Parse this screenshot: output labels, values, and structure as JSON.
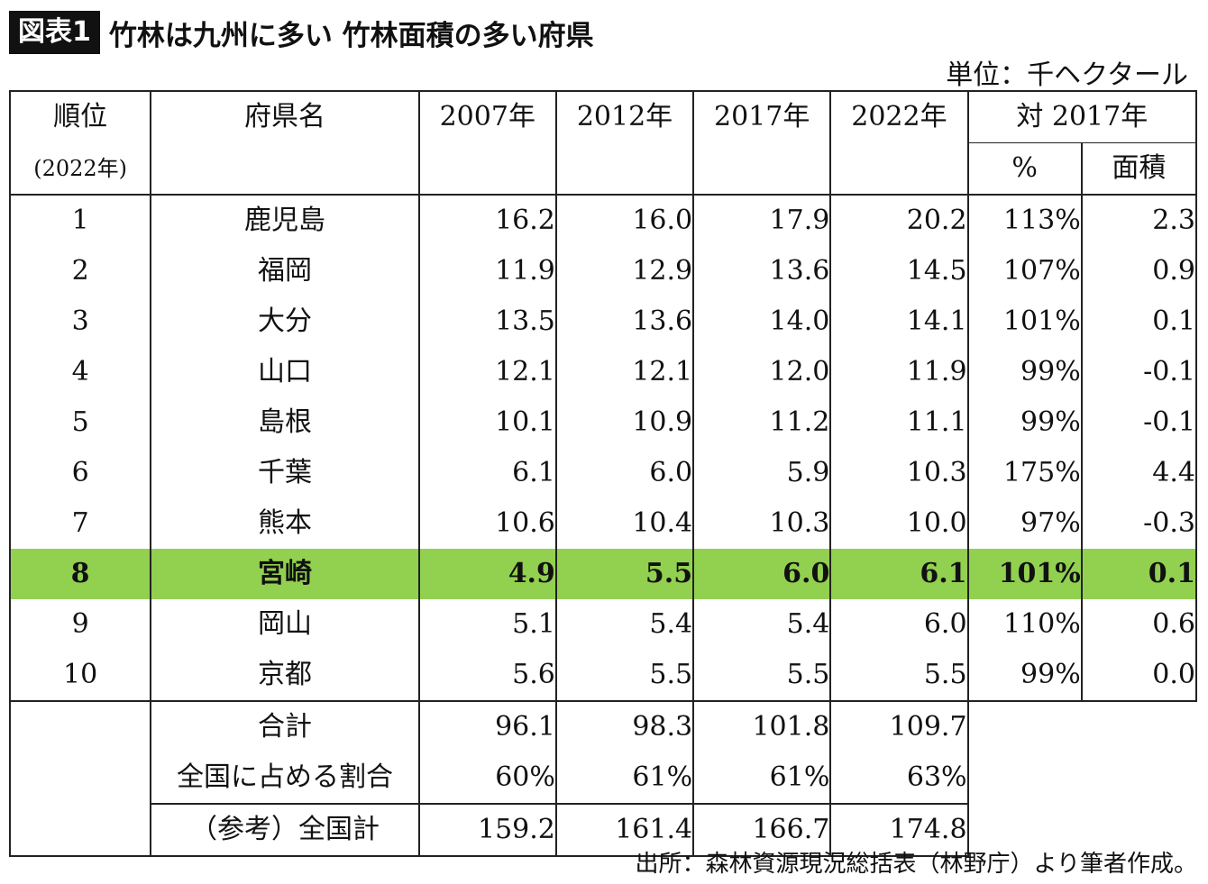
{
  "header": {
    "badge": "図表1",
    "title": "竹林は九州に多い 竹林面積の多い府県",
    "unit": "単位：千ヘクタール"
  },
  "columns": {
    "rank": "順位",
    "rank_sub": "(2022年)",
    "pref": "府県名",
    "y2007": "2007年",
    "y2012": "2012年",
    "y2017": "2017年",
    "y2022": "2022年",
    "vs2017": "対 2017年",
    "pct": "%",
    "area": "面積"
  },
  "chart_data": {
    "type": "table",
    "title": "竹林は九州に多い 竹林面積の多い府県",
    "unit": "単位：千ヘクタール",
    "rows": [
      {
        "rank": "1",
        "pref": "鹿児島",
        "v2007": "16.2",
        "v2012": "16.0",
        "v2017": "17.9",
        "v2022": "20.2",
        "pct": "113%",
        "diff": "2.3"
      },
      {
        "rank": "2",
        "pref": "福岡",
        "v2007": "11.9",
        "v2012": "12.9",
        "v2017": "13.6",
        "v2022": "14.5",
        "pct": "107%",
        "diff": "0.9"
      },
      {
        "rank": "3",
        "pref": "大分",
        "v2007": "13.5",
        "v2012": "13.6",
        "v2017": "14.0",
        "v2022": "14.1",
        "pct": "101%",
        "diff": "0.1"
      },
      {
        "rank": "4",
        "pref": "山口",
        "v2007": "12.1",
        "v2012": "12.1",
        "v2017": "12.0",
        "v2022": "11.9",
        "pct": "99%",
        "diff": "-0.1"
      },
      {
        "rank": "5",
        "pref": "島根",
        "v2007": "10.1",
        "v2012": "10.9",
        "v2017": "11.2",
        "v2022": "11.1",
        "pct": "99%",
        "diff": "-0.1"
      },
      {
        "rank": "6",
        "pref": "千葉",
        "v2007": "6.1",
        "v2012": "6.0",
        "v2017": "5.9",
        "v2022": "10.3",
        "pct": "175%",
        "diff": "4.4"
      },
      {
        "rank": "7",
        "pref": "熊本",
        "v2007": "10.6",
        "v2012": "10.4",
        "v2017": "10.3",
        "v2022": "10.0",
        "pct": "97%",
        "diff": "-0.3"
      },
      {
        "rank": "8",
        "pref": "宮崎",
        "v2007": "4.9",
        "v2012": "5.5",
        "v2017": "6.0",
        "v2022": "6.1",
        "pct": "101%",
        "diff": "0.1",
        "highlight": true
      },
      {
        "rank": "9",
        "pref": "岡山",
        "v2007": "5.1",
        "v2012": "5.4",
        "v2017": "5.4",
        "v2022": "6.0",
        "pct": "110%",
        "diff": "0.6"
      },
      {
        "rank": "10",
        "pref": "京都",
        "v2007": "5.6",
        "v2012": "5.5",
        "v2017": "5.5",
        "v2022": "5.5",
        "pct": "99%",
        "diff": "0.0"
      }
    ],
    "totals": [
      {
        "label": "合計",
        "v2007": "96.1",
        "v2012": "98.3",
        "v2017": "101.8",
        "v2022": "109.7"
      },
      {
        "label": "全国に占める割合",
        "v2007": "60%",
        "v2012": "61%",
        "v2017": "61%",
        "v2022": "63%"
      },
      {
        "label": "（参考）全国計",
        "v2007": "159.2",
        "v2012": "161.4",
        "v2017": "166.7",
        "v2022": "174.8"
      }
    ],
    "highlight_color": "#92d050"
  },
  "footer": {
    "source": "出所：森林資源現況総括表（林野庁）より筆者作成。"
  }
}
